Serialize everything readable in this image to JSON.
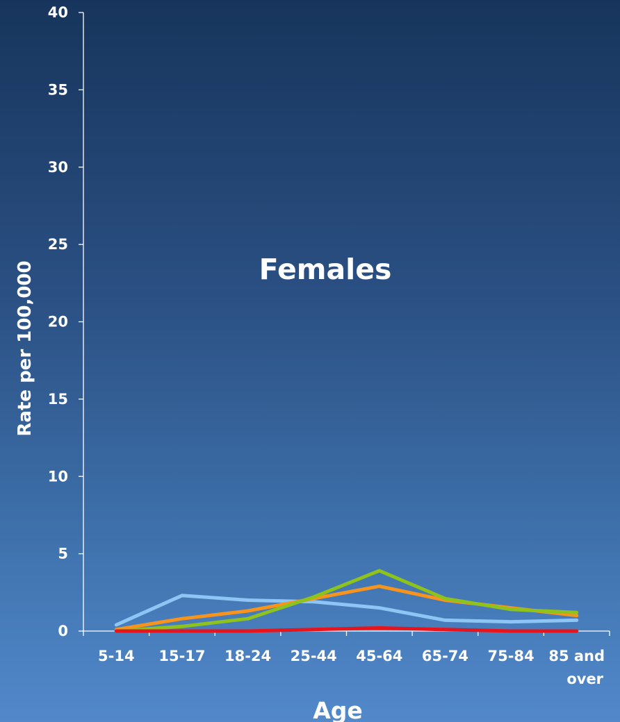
{
  "chart_data": {
    "type": "line",
    "title": "Females",
    "xlabel": "Age",
    "ylabel": "Rate per 100,000",
    "ylim": [
      0,
      40
    ],
    "yticks": [
      0,
      5,
      10,
      15,
      20,
      25,
      30,
      35,
      40
    ],
    "categories": [
      "5-14",
      "15-17",
      "18-24",
      "25-44",
      "45-64",
      "65-74",
      "75-84",
      "85 and over"
    ],
    "grid": false,
    "legend": "none",
    "series": [
      {
        "color": "#8dc6f5",
        "values": [
          0.4,
          2.3,
          2.0,
          1.9,
          1.5,
          0.7,
          0.6,
          0.7
        ]
      },
      {
        "color": "#f7941d",
        "values": [
          0.1,
          0.8,
          1.3,
          2.1,
          2.9,
          2.0,
          1.5,
          1.0
        ]
      },
      {
        "color": "#8ec21c",
        "values": [
          0.0,
          0.3,
          0.8,
          2.2,
          3.9,
          2.1,
          1.4,
          1.2
        ]
      },
      {
        "color": "#e8141c",
        "values": [
          0.0,
          0.0,
          0.0,
          0.1,
          0.2,
          0.1,
          0.0,
          0.0
        ]
      }
    ]
  }
}
